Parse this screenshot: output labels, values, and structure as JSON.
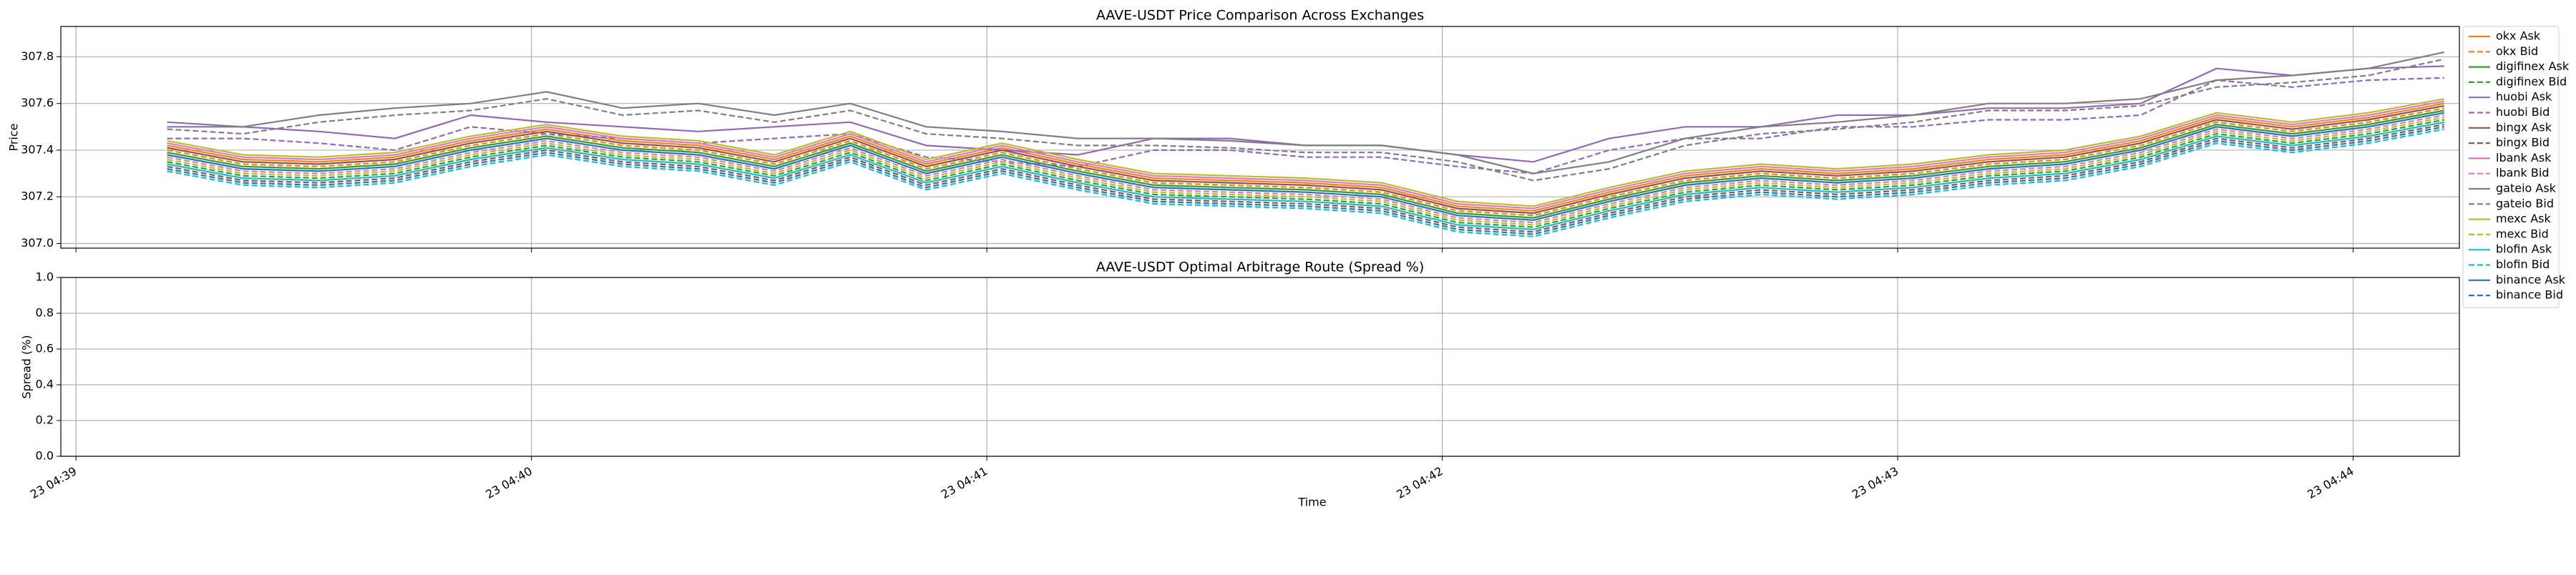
{
  "chart_data": [
    {
      "type": "line",
      "title": "AAVE-USDT Price Comparison Across Exchanges",
      "ylabel": "Price",
      "ylim": [
        306.98,
        307.93
      ],
      "yticks": [
        {
          "value": 307,
          "label": "307.0"
        },
        307.2,
        307.4,
        307.6,
        307.8
      ],
      "grid": true,
      "legend": "outside upper right",
      "x": [
        "04:39:12",
        "04:39:22",
        "04:39:32",
        "04:39:42",
        "04:39:52",
        "04:40:02",
        "04:40:12",
        "04:40:22",
        "04:40:32",
        "04:40:42",
        "04:40:52",
        "04:41:02",
        "04:41:12",
        "04:41:22",
        "04:41:32",
        "04:41:42",
        "04:41:52",
        "04:42:02",
        "04:42:12",
        "04:42:22",
        "04:42:32",
        "04:42:42",
        "04:42:52",
        "04:43:02",
        "04:43:12",
        "04:43:22",
        "04:43:32",
        "04:43:42",
        "04:43:52",
        "04:44:02",
        "04:44:12"
      ],
      "series": [
        {
          "name": "okx Ask",
          "color": "#ff7f0e",
          "linestyle": "solid",
          "values": [
            307.42,
            307.36,
            307.35,
            307.37,
            307.44,
            307.49,
            307.44,
            307.42,
            307.36,
            307.46,
            307.34,
            307.41,
            307.34,
            307.28,
            307.27,
            307.26,
            307.24,
            307.16,
            307.14,
            307.22,
            307.29,
            307.32,
            307.3,
            307.32,
            307.36,
            307.38,
            307.44,
            307.54,
            307.5,
            307.54,
            307.6
          ]
        },
        {
          "name": "okx Bid",
          "color": "#ff7f0e",
          "linestyle": "dashed",
          "values": [
            307.4,
            307.34,
            307.33,
            307.35,
            307.42,
            307.47,
            307.42,
            307.4,
            307.34,
            307.44,
            307.32,
            307.39,
            307.32,
            307.26,
            307.25,
            307.24,
            307.22,
            307.14,
            307.12,
            307.2,
            307.27,
            307.3,
            307.28,
            307.3,
            307.34,
            307.36,
            307.42,
            307.52,
            307.48,
            307.52,
            307.58
          ]
        },
        {
          "name": "digifinex Ask",
          "color": "#2ca02c",
          "linestyle": "solid",
          "values": [
            307.39,
            307.33,
            307.32,
            307.34,
            307.41,
            307.46,
            307.41,
            307.39,
            307.33,
            307.43,
            307.31,
            307.38,
            307.31,
            307.25,
            307.24,
            307.23,
            307.21,
            307.13,
            307.11,
            307.19,
            307.26,
            307.29,
            307.27,
            307.29,
            307.33,
            307.35,
            307.41,
            307.51,
            307.47,
            307.51,
            307.57
          ]
        },
        {
          "name": "digifinex Bid",
          "color": "#2ca02c",
          "linestyle": "dashed",
          "values": [
            307.35,
            307.29,
            307.28,
            307.3,
            307.37,
            307.42,
            307.37,
            307.35,
            307.29,
            307.39,
            307.27,
            307.34,
            307.27,
            307.21,
            307.2,
            307.19,
            307.17,
            307.09,
            307.07,
            307.15,
            307.22,
            307.25,
            307.23,
            307.25,
            307.29,
            307.31,
            307.37,
            307.47,
            307.43,
            307.47,
            307.53
          ]
        },
        {
          "name": "huobi Ask",
          "color": "#9467bd",
          "linestyle": "solid",
          "values": [
            307.5,
            307.5,
            307.48,
            307.45,
            307.55,
            307.52,
            307.5,
            307.48,
            307.5,
            307.52,
            307.42,
            307.4,
            307.38,
            307.45,
            307.45,
            307.42,
            307.42,
            307.38,
            307.35,
            307.45,
            307.5,
            307.5,
            307.55,
            307.55,
            307.58,
            307.58,
            307.6,
            307.75,
            307.72,
            307.75,
            307.76
          ]
        },
        {
          "name": "huobi Bid",
          "color": "#9467bd",
          "linestyle": "dashed",
          "values": [
            307.45,
            307.45,
            307.43,
            307.4,
            307.5,
            307.47,
            307.45,
            307.43,
            307.45,
            307.47,
            307.37,
            307.35,
            307.33,
            307.4,
            307.4,
            307.37,
            307.37,
            307.33,
            307.3,
            307.4,
            307.45,
            307.45,
            307.5,
            307.5,
            307.53,
            307.53,
            307.55,
            307.7,
            307.67,
            307.7,
            307.71
          ]
        },
        {
          "name": "bingx Ask",
          "color": "#8c564b",
          "linestyle": "solid",
          "values": [
            307.41,
            307.35,
            307.34,
            307.36,
            307.43,
            307.48,
            307.43,
            307.41,
            307.35,
            307.45,
            307.33,
            307.4,
            307.33,
            307.27,
            307.26,
            307.25,
            307.23,
            307.15,
            307.13,
            307.21,
            307.28,
            307.31,
            307.29,
            307.31,
            307.35,
            307.37,
            307.43,
            307.53,
            307.49,
            307.53,
            307.59
          ]
        },
        {
          "name": "bingx Bid",
          "color": "#8c564b",
          "linestyle": "dashed",
          "values": [
            307.33,
            307.27,
            307.26,
            307.28,
            307.35,
            307.4,
            307.35,
            307.33,
            307.27,
            307.37,
            307.25,
            307.32,
            307.25,
            307.19,
            307.18,
            307.17,
            307.15,
            307.07,
            307.05,
            307.13,
            307.2,
            307.23,
            307.21,
            307.23,
            307.27,
            307.29,
            307.35,
            307.45,
            307.41,
            307.45,
            307.51
          ]
        },
        {
          "name": "lbank Ask",
          "color": "#e377c2",
          "linestyle": "solid",
          "values": [
            307.43,
            307.37,
            307.36,
            307.38,
            307.45,
            307.5,
            307.45,
            307.43,
            307.37,
            307.47,
            307.35,
            307.42,
            307.35,
            307.29,
            307.28,
            307.27,
            307.25,
            307.17,
            307.15,
            307.23,
            307.3,
            307.33,
            307.31,
            307.33,
            307.37,
            307.39,
            307.45,
            307.55,
            307.51,
            307.55,
            307.61
          ]
        },
        {
          "name": "lbank Bid",
          "color": "#e377c2",
          "linestyle": "dashed",
          "values": [
            307.37,
            307.31,
            307.3,
            307.32,
            307.39,
            307.44,
            307.39,
            307.37,
            307.31,
            307.41,
            307.29,
            307.36,
            307.29,
            307.23,
            307.22,
            307.21,
            307.19,
            307.11,
            307.09,
            307.17,
            307.24,
            307.27,
            307.25,
            307.27,
            307.31,
            307.33,
            307.39,
            307.49,
            307.45,
            307.49,
            307.55
          ]
        },
        {
          "name": "gateio Ask",
          "color": "#7f7f7f",
          "linestyle": "solid",
          "values": [
            307.52,
            307.5,
            307.55,
            307.58,
            307.6,
            307.65,
            307.58,
            307.6,
            307.55,
            307.6,
            307.5,
            307.48,
            307.45,
            307.45,
            307.44,
            307.42,
            307.42,
            307.38,
            307.3,
            307.35,
            307.45,
            307.5,
            307.52,
            307.55,
            307.6,
            307.6,
            307.62,
            307.7,
            307.72,
            307.75,
            307.82
          ]
        },
        {
          "name": "gateio Bid",
          "color": "#7f7f7f",
          "linestyle": "dashed",
          "values": [
            307.49,
            307.47,
            307.52,
            307.55,
            307.57,
            307.62,
            307.55,
            307.57,
            307.52,
            307.57,
            307.47,
            307.45,
            307.42,
            307.42,
            307.41,
            307.39,
            307.39,
            307.35,
            307.27,
            307.32,
            307.42,
            307.47,
            307.49,
            307.52,
            307.57,
            307.57,
            307.59,
            307.67,
            307.69,
            307.72,
            307.79
          ]
        },
        {
          "name": "mexc Ask",
          "color": "#bcbd22",
          "linestyle": "solid",
          "values": [
            307.44,
            307.38,
            307.37,
            307.39,
            307.46,
            307.51,
            307.46,
            307.44,
            307.38,
            307.48,
            307.36,
            307.43,
            307.36,
            307.3,
            307.29,
            307.28,
            307.26,
            307.18,
            307.16,
            307.24,
            307.31,
            307.34,
            307.32,
            307.34,
            307.38,
            307.4,
            307.46,
            307.56,
            307.52,
            307.56,
            307.62
          ]
        },
        {
          "name": "mexc Bid",
          "color": "#bcbd22",
          "linestyle": "dashed",
          "values": [
            307.36,
            307.3,
            307.29,
            307.31,
            307.38,
            307.43,
            307.38,
            307.36,
            307.3,
            307.4,
            307.28,
            307.35,
            307.28,
            307.22,
            307.21,
            307.2,
            307.18,
            307.1,
            307.08,
            307.16,
            307.23,
            307.26,
            307.24,
            307.26,
            307.3,
            307.32,
            307.38,
            307.48,
            307.44,
            307.48,
            307.54
          ]
        },
        {
          "name": "blofin Ask",
          "color": "#17becf",
          "linestyle": "solid",
          "values": [
            307.34,
            307.28,
            307.27,
            307.29,
            307.36,
            307.41,
            307.36,
            307.34,
            307.28,
            307.38,
            307.26,
            307.33,
            307.26,
            307.2,
            307.19,
            307.18,
            307.16,
            307.08,
            307.06,
            307.14,
            307.21,
            307.24,
            307.22,
            307.24,
            307.28,
            307.3,
            307.36,
            307.46,
            307.42,
            307.46,
            307.52
          ]
        },
        {
          "name": "blofin Bid",
          "color": "#17becf",
          "linestyle": "dashed",
          "values": [
            307.31,
            307.25,
            307.24,
            307.26,
            307.33,
            307.38,
            307.33,
            307.31,
            307.25,
            307.35,
            307.23,
            307.3,
            307.23,
            307.17,
            307.16,
            307.15,
            307.13,
            307.05,
            307.03,
            307.11,
            307.18,
            307.21,
            307.19,
            307.21,
            307.25,
            307.27,
            307.33,
            307.43,
            307.39,
            307.43,
            307.49
          ]
        },
        {
          "name": "binance Ask",
          "color": "#1f77b4",
          "linestyle": "solid",
          "values": [
            307.38,
            307.32,
            307.31,
            307.33,
            307.4,
            307.45,
            307.4,
            307.38,
            307.32,
            307.42,
            307.3,
            307.37,
            307.3,
            307.24,
            307.23,
            307.22,
            307.2,
            307.12,
            307.1,
            307.18,
            307.25,
            307.28,
            307.26,
            307.28,
            307.32,
            307.34,
            307.4,
            307.5,
            307.46,
            307.5,
            307.56
          ]
        },
        {
          "name": "binance Bid",
          "color": "#1f77b4",
          "linestyle": "dashed",
          "values": [
            307.32,
            307.26,
            307.25,
            307.27,
            307.34,
            307.39,
            307.34,
            307.32,
            307.26,
            307.36,
            307.24,
            307.31,
            307.24,
            307.18,
            307.17,
            307.16,
            307.14,
            307.06,
            307.04,
            307.12,
            307.19,
            307.22,
            307.2,
            307.22,
            307.26,
            307.28,
            307.34,
            307.44,
            307.4,
            307.44,
            307.5
          ]
        }
      ]
    },
    {
      "type": "line",
      "title": "AAVE-USDT Optimal Arbitrage Route (Spread %)",
      "xlabel": "Time",
      "ylabel": "Spread (%)",
      "xlim": [
        "04:38:58",
        "04:44:14"
      ],
      "xticks": [
        {
          "value": "04:39:00",
          "label": "23 04:39"
        },
        {
          "value": "04:40:00",
          "label": "23 04:40"
        },
        {
          "value": "04:41:00",
          "label": "23 04:41"
        },
        {
          "value": "04:42:00",
          "label": "23 04:42"
        },
        {
          "value": "04:43:00",
          "label": "23 04:43"
        },
        {
          "value": "04:44:00",
          "label": "23 04:44"
        }
      ],
      "ylim": [
        0,
        1
      ],
      "yticks": [
        {
          "value": 0,
          "label": "0.0"
        },
        0.2,
        0.4,
        0.6,
        0.8,
        {
          "value": 1,
          "label": "1.0"
        }
      ],
      "grid": true,
      "series": []
    }
  ]
}
